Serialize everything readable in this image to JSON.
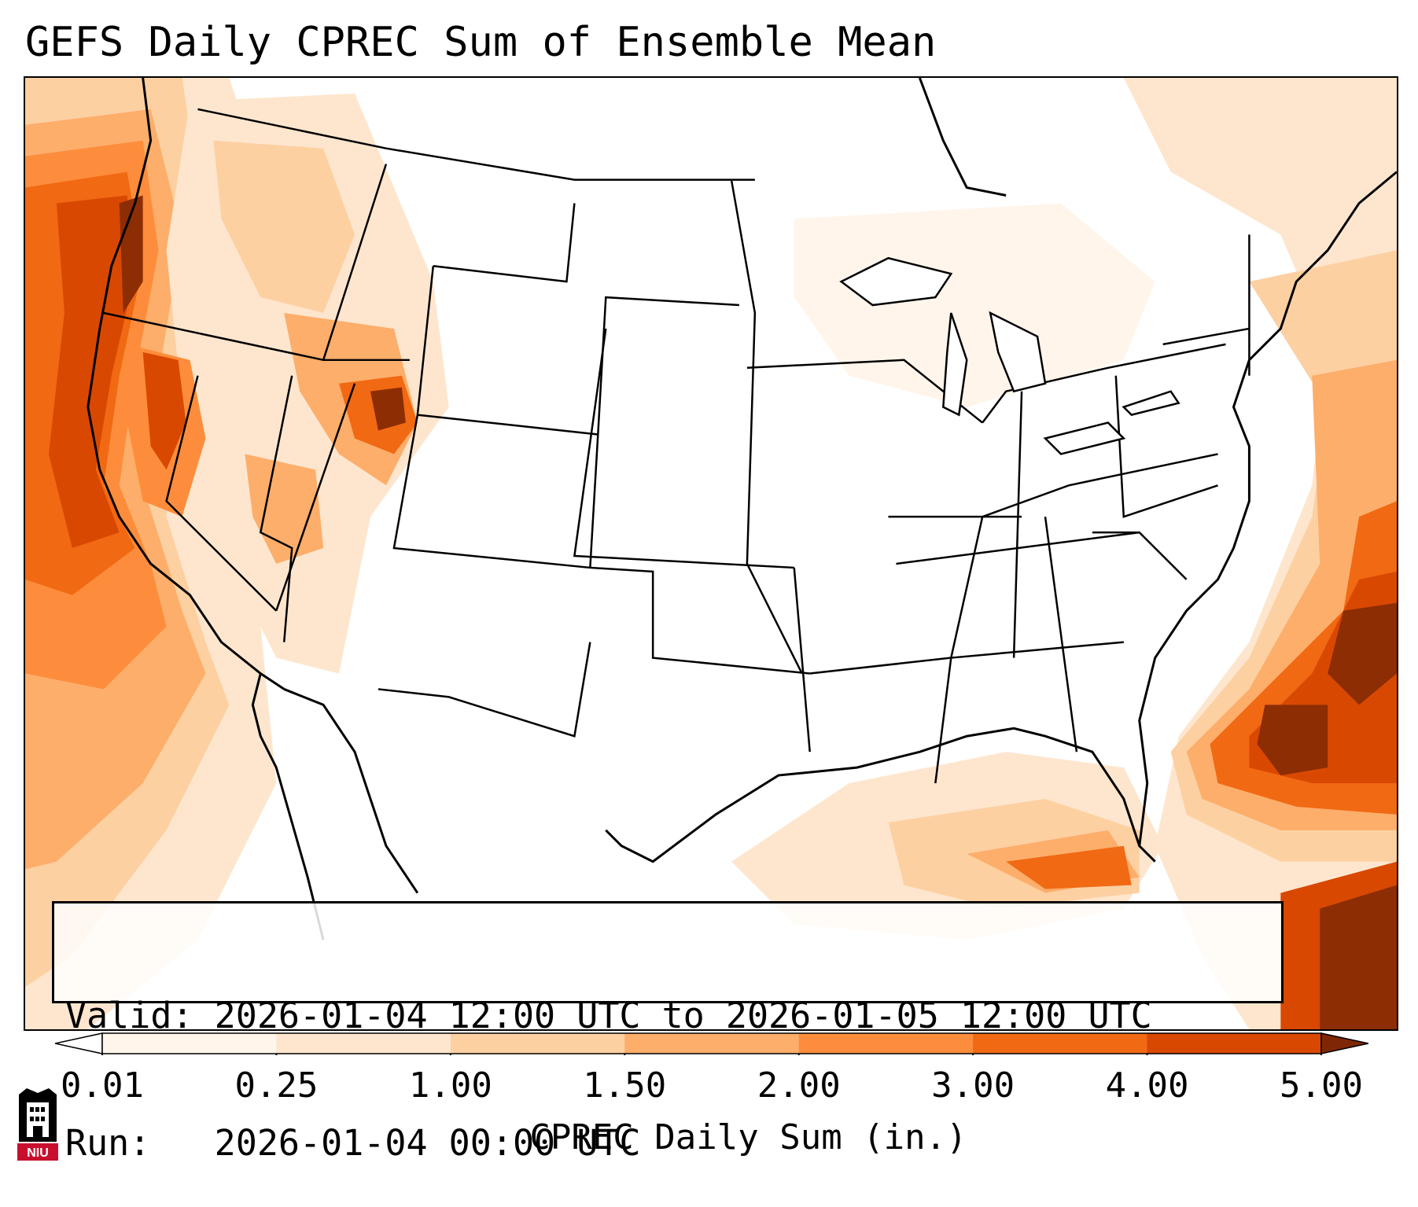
{
  "title": "GEFS Daily CPREC Sum of Ensemble Mean",
  "info": {
    "valid_label": "Valid:",
    "valid_value": "2026-01-04 12:00 UTC to 2026-01-05 12:00 UTC",
    "run_label": "Run:",
    "run_value": "2026-01-04 00:00 UTC"
  },
  "colorbar": {
    "label": "CPREC Daily Sum (in.)",
    "ticks": [
      "0.01",
      "0.25",
      "1.00",
      "1.50",
      "2.00",
      "3.00",
      "4.00",
      "5.00"
    ],
    "colors": [
      "#fff5eb",
      "#fee6ce",
      "#fdd0a2",
      "#fdae6b",
      "#fd8d3c",
      "#f16913",
      "#d94801",
      "#8c2d04"
    ],
    "under_color": "#ffffff",
    "over_color": "#7f2704"
  },
  "logo": {
    "text": "NIU",
    "color": "#c8102e"
  },
  "map": {
    "projection": "Lambert conformal (CONUS)",
    "region": "Contiguous United States",
    "field": "Convective precipitation daily sum (GEFS ensemble mean)",
    "precip_areas": [
      {
        "region": "Pacific Northwest coast",
        "level": "4.00-5.00"
      },
      {
        "region": "Northern California / Sierra Nevada",
        "level": "4.00-5.00"
      },
      {
        "region": "Eastern Idaho / Wyoming border",
        "level": "4.00-5.00"
      },
      {
        "region": "Western Atlantic off Carolinas",
        "level": "4.00-5.00"
      },
      {
        "region": "Gulf of Mexico",
        "level": "2.00-3.00"
      },
      {
        "region": "Caribbean / Cuba",
        "level": "3.00-5.00"
      }
    ]
  }
}
